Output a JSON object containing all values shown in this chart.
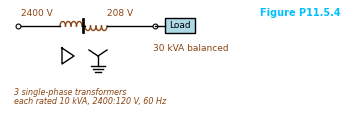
{
  "fig_width": 3.46,
  "fig_height": 1.18,
  "dpi": 100,
  "bg_color": "#ffffff",
  "line_color": "#000000",
  "text_color_brown": "#8B4513",
  "text_color_cyan": "#00BFFF",
  "label_2400": "2400 V",
  "label_208": "208 V",
  "label_load": "Load",
  "label_kva": "30 kVA balanced",
  "label_fig": "Figure P11.5.4",
  "label_bottom1": "3 single-phase transformers",
  "label_bottom2": "each rated 10 kVA, 2400:120 V, 60 Hz",
  "coil_color": "#8B4513",
  "load_box_color": "#ADD8E6",
  "load_box_edge": "#000000",
  "line_lw": 1.0
}
